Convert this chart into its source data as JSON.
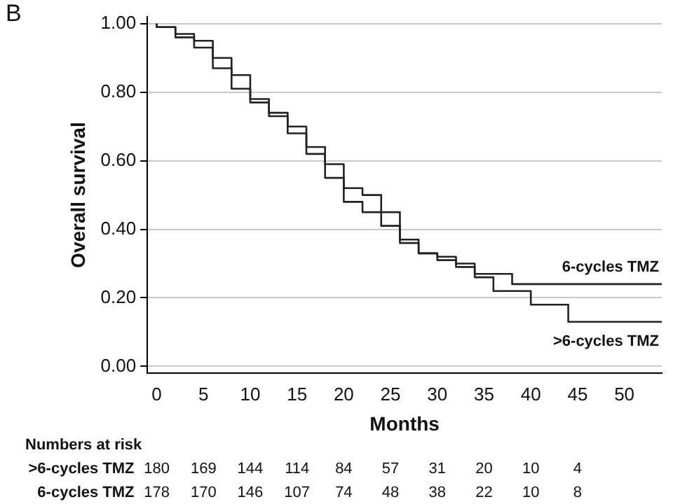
{
  "chart_data": {
    "type": "step",
    "title": "B",
    "xlabel": "Months",
    "ylabel": "Overall survival",
    "xlim": [
      -1,
      54
    ],
    "xticks": [
      0,
      5,
      10,
      15,
      20,
      25,
      30,
      35,
      40,
      45,
      50
    ],
    "ylim": [
      -0.02,
      1.02
    ],
    "yticks": [
      {
        "value": 0,
        "label": "0.00"
      },
      {
        "value": 0.2,
        "label": "0.20"
      },
      {
        "value": 0.4,
        "label": "0.40"
      },
      {
        "value": 0.6,
        "label": "0.60"
      },
      {
        "value": 0.8,
        "label": "0.80"
      },
      {
        "value": 1,
        "label": "1.00"
      }
    ],
    "grid": "y",
    "legend": false,
    "marker": "none",
    "line_style": "solid",
    "series": [
      {
        "name": "6-cycles TMZ",
        "color": "#222222",
        "x": [
          0,
          2,
          4,
          6,
          8,
          10,
          12,
          14,
          16,
          18,
          20,
          22,
          24,
          26,
          28,
          30,
          32,
          34,
          36,
          38,
          40,
          54
        ],
        "values": [
          1,
          0.99,
          0.96,
          0.93,
          0.87,
          0.81,
          0.77,
          0.73,
          0.68,
          0.62,
          0.55,
          0.48,
          0.45,
          0.41,
          0.36,
          0.33,
          0.32,
          0.3,
          0.27,
          0.27,
          0.24,
          0.24
        ]
      },
      {
        "name": ">6-cycles TMZ",
        "color": "#222222",
        "x": [
          0,
          2,
          4,
          6,
          8,
          10,
          12,
          14,
          16,
          18,
          20,
          22,
          24,
          26,
          28,
          30,
          32,
          34,
          36,
          38,
          40,
          44,
          45,
          54
        ],
        "values": [
          1,
          0.99,
          0.97,
          0.95,
          0.9,
          0.85,
          0.78,
          0.74,
          0.7,
          0.64,
          0.59,
          0.52,
          0.5,
          0.45,
          0.37,
          0.33,
          0.31,
          0.29,
          0.26,
          0.22,
          0.22,
          0.18,
          0.13,
          0.13
        ]
      }
    ],
    "annotations": [
      "Numbers at risk",
      ">6-cycles TMZ",
      "180",
      "169",
      "144",
      "114",
      "84",
      "57",
      "31",
      "20",
      "10",
      "4",
      "6-cycles TMZ",
      "178",
      "170",
      "146",
      "107",
      "74",
      "48",
      "38",
      "22",
      "10",
      "8"
    ]
  }
}
